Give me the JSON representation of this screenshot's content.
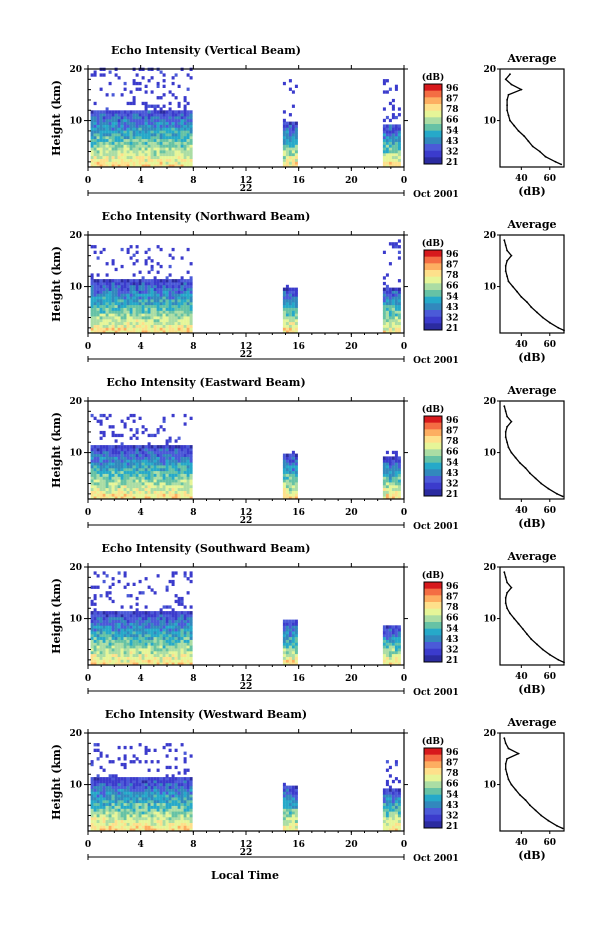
{
  "figure": {
    "xlabel": "Local Time",
    "day_label": "22",
    "date_label": "Oct 2001",
    "colorbar_label": "(dB)",
    "colorbar_ticks": [
      "96",
      "87",
      "78",
      "66",
      "54",
      "43",
      "32",
      "21"
    ],
    "colorbar_colors": [
      "#d7191c",
      "#f46d43",
      "#fdae61",
      "#fee08b",
      "#e6f598",
      "#abdda4",
      "#66c2a5",
      "#26a9c9",
      "#3288bd",
      "#4b5ad8",
      "#3b3bcc",
      "#2b2ba0"
    ],
    "height_ylabel": "Height (km)",
    "profile_title": "Average",
    "profile_xlabel": "(dB)",
    "time_ticks": [
      "0",
      "4",
      "8",
      "12",
      "16",
      "20",
      "0"
    ],
    "height_ticks": [
      "20",
      "10"
    ]
  },
  "chart_data": [
    {
      "type": "heatmap",
      "title": "Echo Intensity (Vertical Beam)",
      "xlabel": "Local Time",
      "ylabel": "Height (km)",
      "xlim": [
        0,
        24
      ],
      "ylim": [
        1,
        20
      ],
      "colorbar_range_db": [
        21,
        96
      ],
      "data_blocks": [
        {
          "t_start": 0.2,
          "t_end": 7.9,
          "top_km": 20,
          "dense_top_km": 12
        },
        {
          "t_start": 14.8,
          "t_end": 15.9,
          "top_km": 18,
          "dense_top_km": 9.5
        },
        {
          "t_start": 22.4,
          "t_end": 23.6,
          "top_km": 18,
          "dense_top_km": 9
        }
      ],
      "profile": {
        "title": "Average",
        "xlabel": "(dB)",
        "xticks": [
          "40",
          "60"
        ],
        "yticks": [
          "20",
          "10"
        ],
        "xlim": [
          25,
          70
        ],
        "height_km": [
          1.5,
          2,
          3,
          4,
          5,
          6,
          7,
          8,
          9,
          10,
          11,
          12,
          13,
          14,
          15,
          16,
          17,
          18,
          19
        ],
        "mean_db": [
          68,
          64,
          57,
          53,
          48,
          45,
          42,
          38,
          35,
          32,
          31,
          30,
          30,
          30,
          31,
          40,
          33,
          29,
          32
        ]
      }
    },
    {
      "type": "heatmap",
      "title": "Echo Intensity (Northward Beam)",
      "xlabel": "Local Time",
      "ylabel": "Height (km)",
      "xlim": [
        0,
        24
      ],
      "ylim": [
        1,
        20
      ],
      "colorbar_range_db": [
        21,
        96
      ],
      "data_blocks": [
        {
          "t_start": 0.2,
          "t_end": 7.9,
          "top_km": 18,
          "dense_top_km": 11
        },
        {
          "t_start": 14.8,
          "t_end": 15.9,
          "top_km": 10,
          "dense_top_km": 9.5
        },
        {
          "t_start": 22.4,
          "t_end": 23.6,
          "top_km": 19,
          "dense_top_km": 9.5
        }
      ],
      "profile": {
        "title": "Average",
        "xlabel": "(dB)",
        "xticks": [
          "40",
          "60"
        ],
        "yticks": [
          "20",
          "10"
        ],
        "xlim": [
          25,
          70
        ],
        "height_km": [
          1.5,
          2,
          3,
          4,
          5,
          6,
          7,
          8,
          9,
          10,
          11,
          12,
          13,
          14,
          15,
          16,
          17,
          18,
          19
        ],
        "mean_db": [
          70,
          66,
          60,
          55,
          51,
          47,
          44,
          40,
          37,
          34,
          31,
          30,
          29,
          29,
          30,
          33,
          30,
          29,
          28
        ]
      }
    },
    {
      "type": "heatmap",
      "title": "Echo Intensity (Eastward Beam)",
      "xlabel": "Local Time",
      "ylabel": "Height (km)",
      "xlim": [
        0,
        24
      ],
      "ylim": [
        1,
        20
      ],
      "colorbar_range_db": [
        21,
        96
      ],
      "data_blocks": [
        {
          "t_start": 0.2,
          "t_end": 7.9,
          "top_km": 17,
          "dense_top_km": 11
        },
        {
          "t_start": 14.8,
          "t_end": 15.9,
          "top_km": 10,
          "dense_top_km": 9.5
        },
        {
          "t_start": 22.4,
          "t_end": 23.6,
          "top_km": 10,
          "dense_top_km": 9
        }
      ],
      "profile": {
        "title": "Average",
        "xlabel": "(dB)",
        "xticks": [
          "40",
          "60"
        ],
        "yticks": [
          "20",
          "10"
        ],
        "xlim": [
          25,
          70
        ],
        "height_km": [
          1.5,
          2,
          3,
          4,
          5,
          6,
          7,
          8,
          9,
          10,
          11,
          12,
          13,
          14,
          15,
          16,
          17,
          18,
          19
        ],
        "mean_db": [
          69,
          65,
          59,
          54,
          50,
          46,
          43,
          39,
          36,
          33,
          31,
          30,
          29,
          29,
          30,
          33,
          30,
          29,
          28
        ]
      }
    },
    {
      "type": "heatmap",
      "title": "Echo Intensity (Southward Beam)",
      "xlabel": "Local Time",
      "ylabel": "Height (km)",
      "xlim": [
        0,
        24
      ],
      "ylim": [
        1,
        20
      ],
      "colorbar_range_db": [
        21,
        96
      ],
      "data_blocks": [
        {
          "t_start": 0.2,
          "t_end": 7.9,
          "top_km": 19,
          "dense_top_km": 11
        },
        {
          "t_start": 14.8,
          "t_end": 15.9,
          "top_km": 10,
          "dense_top_km": 9.5
        },
        {
          "t_start": 22.4,
          "t_end": 23.6,
          "top_km": 9,
          "dense_top_km": 8.5
        }
      ],
      "profile": {
        "title": "Average",
        "xlabel": "(dB)",
        "xticks": [
          "40",
          "60"
        ],
        "yticks": [
          "20",
          "10"
        ],
        "xlim": [
          25,
          70
        ],
        "height_km": [
          1.5,
          2,
          3,
          4,
          5,
          6,
          7,
          8,
          9,
          10,
          11,
          12,
          13,
          14,
          15,
          16,
          17,
          18,
          19
        ],
        "mean_db": [
          70,
          66,
          60,
          55,
          51,
          47,
          44,
          41,
          38,
          35,
          32,
          30,
          29,
          29,
          30,
          33,
          30,
          29,
          28
        ]
      }
    },
    {
      "type": "heatmap",
      "title": "Echo Intensity (Westward Beam)",
      "xlabel": "Local Time",
      "ylabel": "Height (km)",
      "xlim": [
        0,
        24
      ],
      "ylim": [
        1,
        20
      ],
      "colorbar_range_db": [
        21,
        96
      ],
      "data_blocks": [
        {
          "t_start": 0.2,
          "t_end": 7.9,
          "top_km": 18,
          "dense_top_km": 11
        },
        {
          "t_start": 14.8,
          "t_end": 15.9,
          "top_km": 10,
          "dense_top_km": 9.5
        },
        {
          "t_start": 22.4,
          "t_end": 23.6,
          "top_km": 15,
          "dense_top_km": 9
        }
      ],
      "profile": {
        "title": "Average",
        "xlabel": "(dB)",
        "xticks": [
          "40",
          "60"
        ],
        "yticks": [
          "20",
          "10"
        ],
        "xlim": [
          25,
          70
        ],
        "height_km": [
          1.5,
          2,
          3,
          4,
          5,
          6,
          7,
          8,
          9,
          10,
          11,
          12,
          13,
          14,
          15,
          16,
          17,
          18,
          19
        ],
        "mean_db": [
          69,
          65,
          59,
          54,
          50,
          46,
          43,
          39,
          36,
          33,
          31,
          30,
          29,
          29,
          30,
          38,
          31,
          29,
          28
        ]
      }
    }
  ]
}
